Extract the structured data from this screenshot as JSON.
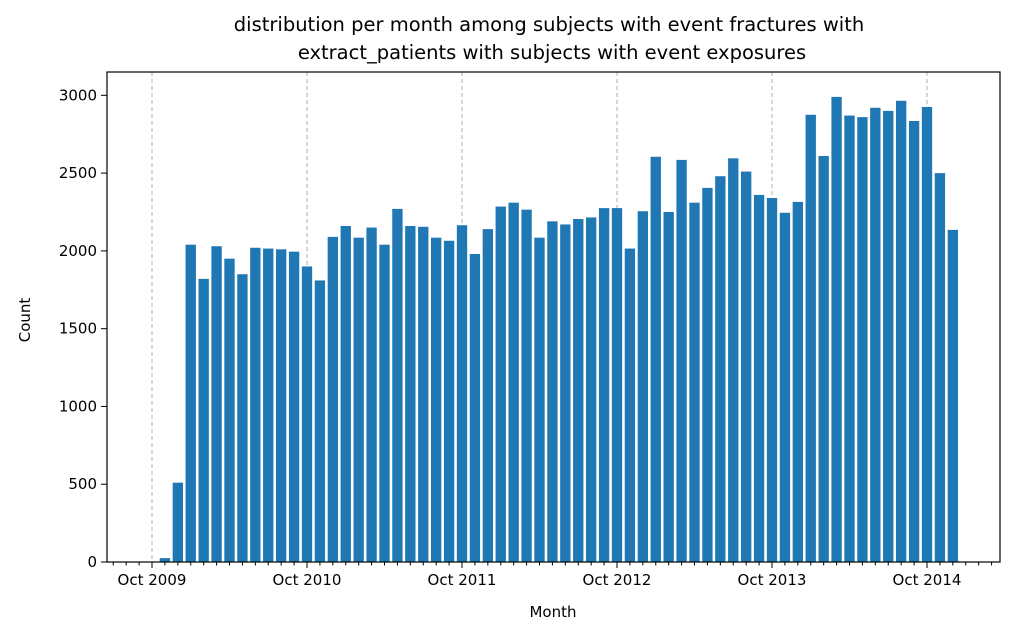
{
  "chart_data": {
    "type": "bar",
    "title": [
      "distribution per month among subjects with event fractures with",
      "extract_patients with subjects with event exposures"
    ],
    "xlabel": "Month",
    "ylabel": "Count",
    "ylim": [
      0,
      3150
    ],
    "yticks": [
      0,
      500,
      1000,
      1500,
      2000,
      2500,
      3000
    ],
    "xticks": [
      "Oct 2009",
      "Oct 2010",
      "Oct 2011",
      "Oct 2012",
      "Oct 2013",
      "Oct 2014"
    ],
    "grid": "vertical dashed at major x ticks",
    "color": "#1f77b4",
    "categories": [
      "2009-11",
      "2009-12",
      "2010-01",
      "2010-02",
      "2010-03",
      "2010-04",
      "2010-05",
      "2010-06",
      "2010-07",
      "2010-08",
      "2010-09",
      "2010-10",
      "2010-11",
      "2010-12",
      "2011-01",
      "2011-02",
      "2011-03",
      "2011-04",
      "2011-05",
      "2011-06",
      "2011-07",
      "2011-08",
      "2011-09",
      "2011-10",
      "2011-11",
      "2011-12",
      "2012-01",
      "2012-02",
      "2012-03",
      "2012-04",
      "2012-05",
      "2012-06",
      "2012-07",
      "2012-08",
      "2012-09",
      "2012-10",
      "2012-11",
      "2012-12",
      "2013-01",
      "2013-02",
      "2013-03",
      "2013-04",
      "2013-05",
      "2013-06",
      "2013-07",
      "2013-08",
      "2013-09",
      "2013-10",
      "2013-11",
      "2013-12",
      "2014-01",
      "2014-02",
      "2014-03",
      "2014-04",
      "2014-05",
      "2014-06",
      "2014-07",
      "2014-08",
      "2014-09",
      "2014-10",
      "2014-11",
      "2014-12"
    ],
    "values": [
      25,
      510,
      2040,
      1820,
      2030,
      1950,
      1850,
      2020,
      2015,
      2010,
      1995,
      1900,
      1810,
      2090,
      2160,
      2085,
      2150,
      2040,
      2270,
      2160,
      2155,
      2085,
      2065,
      2165,
      1980,
      2140,
      2285,
      2310,
      2265,
      2085,
      2190,
      2170,
      2205,
      2215,
      2275,
      2275,
      2015,
      2255,
      2605,
      2250,
      2585,
      2310,
      2405,
      2480,
      2595,
      2510,
      2360,
      2340,
      2245,
      2315,
      2875,
      2610,
      2990,
      2870,
      2860,
      2920,
      2900,
      2965,
      2835,
      2925,
      2500,
      2135
    ]
  }
}
